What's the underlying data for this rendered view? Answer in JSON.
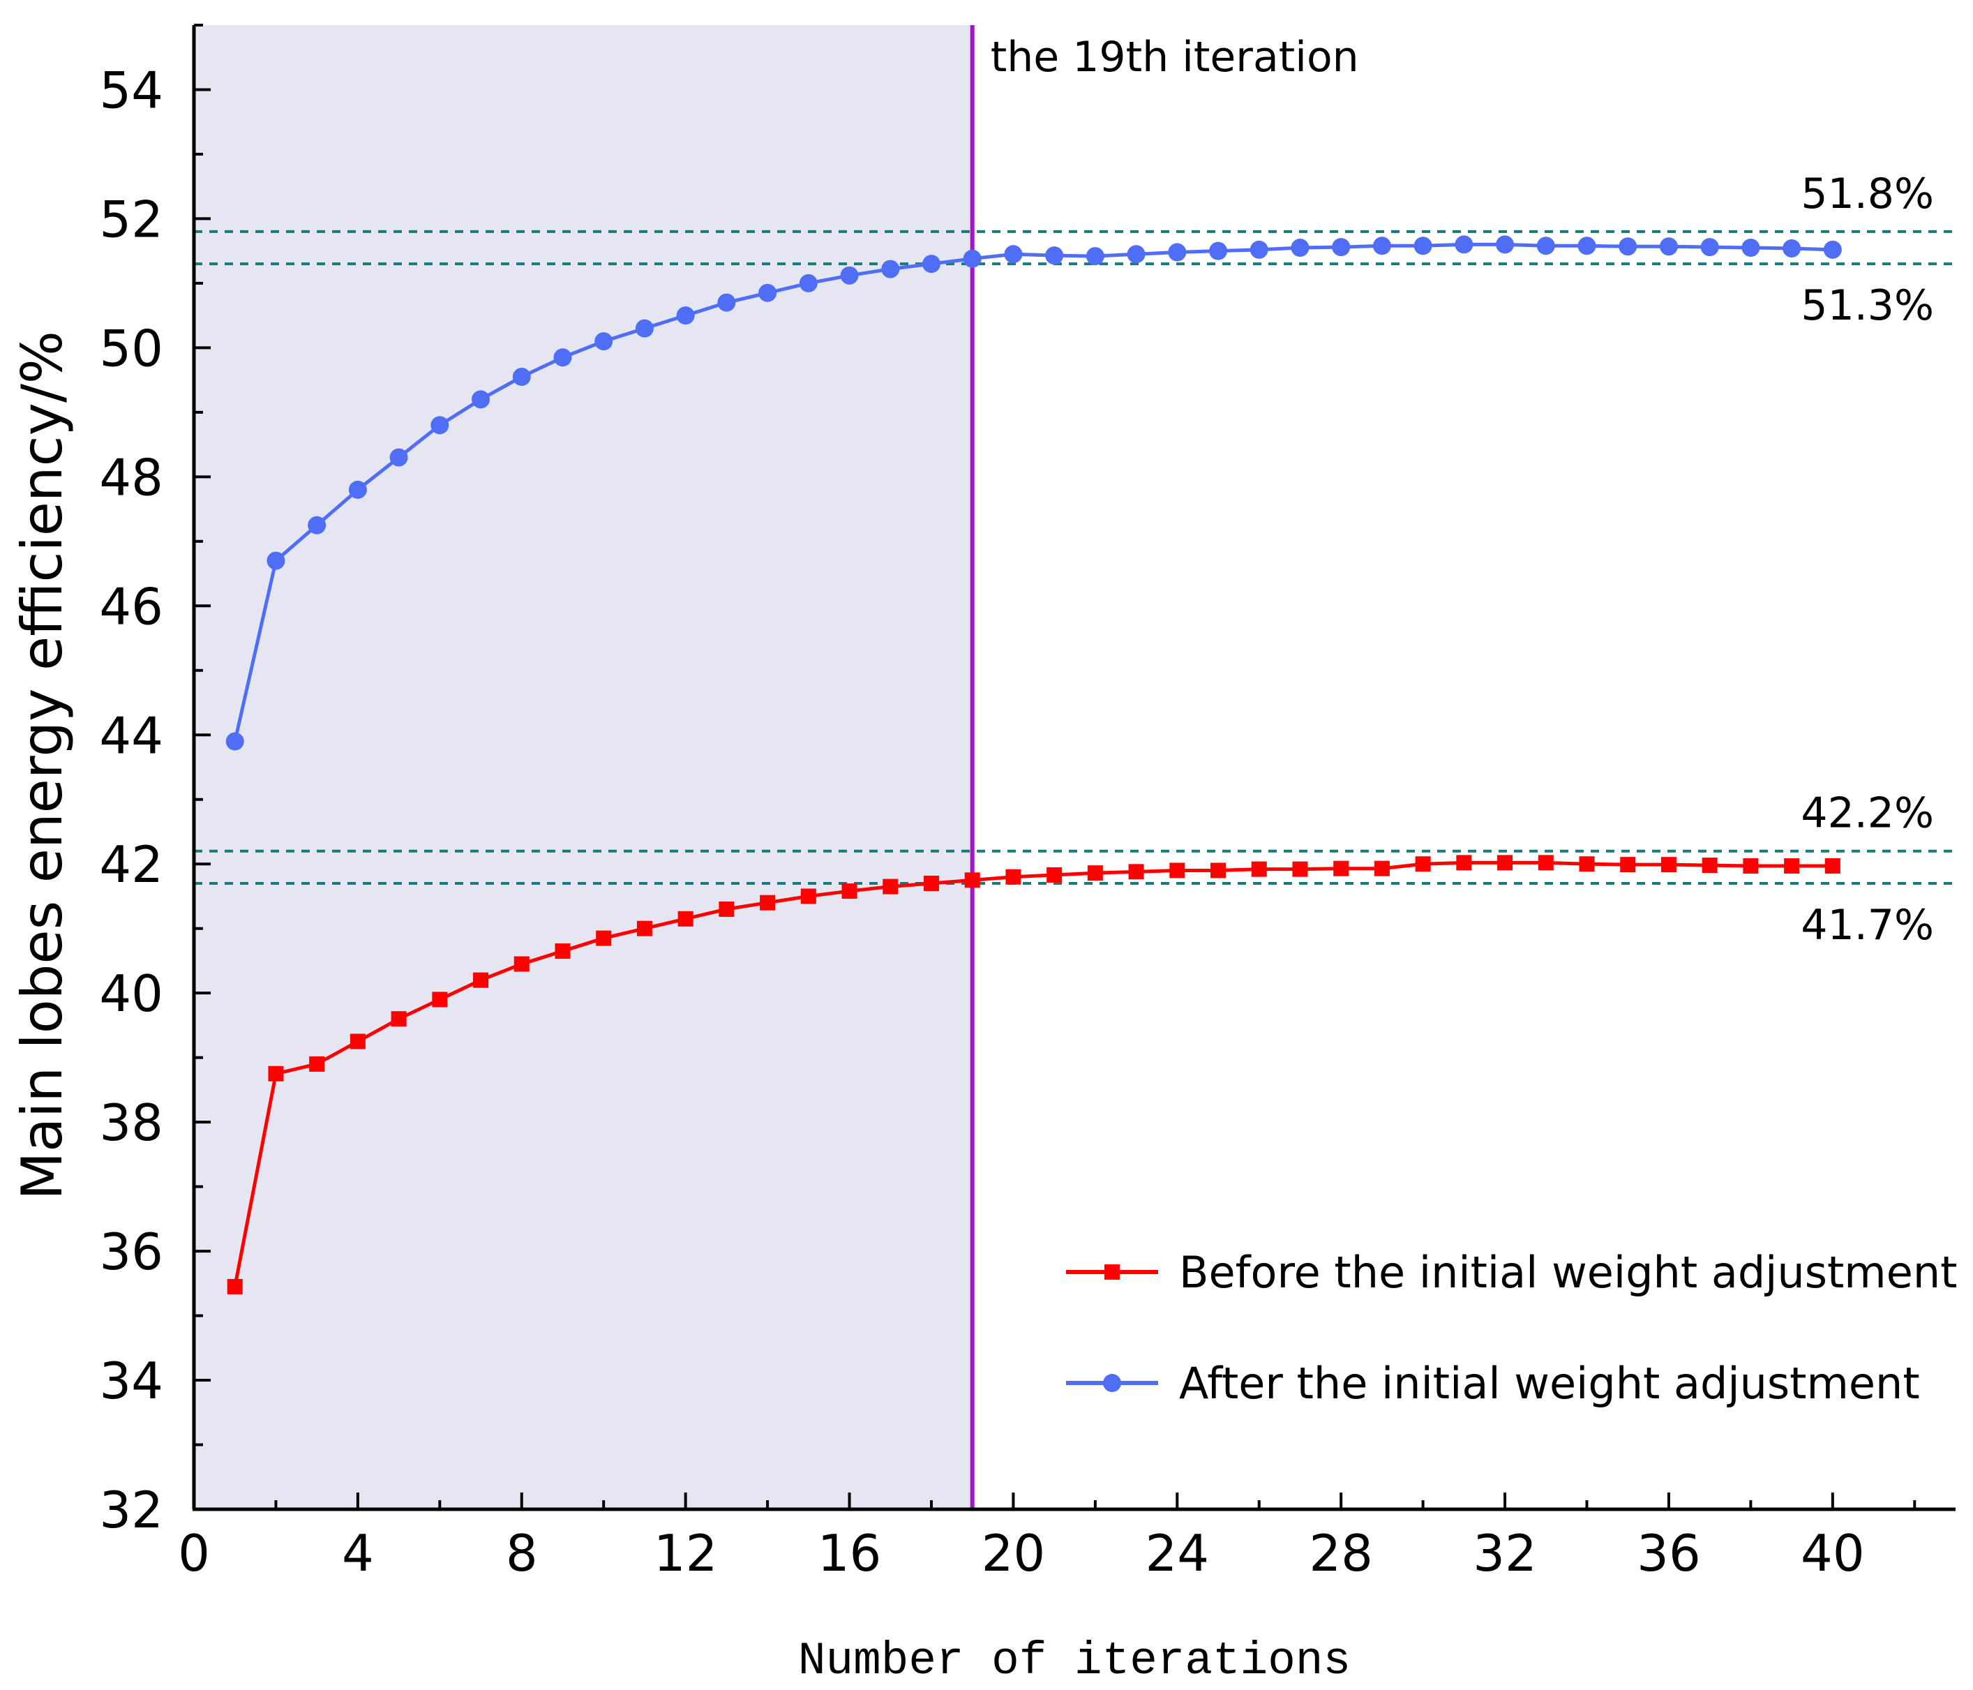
{
  "chart_data": {
    "type": "line",
    "title": "",
    "xlabel": "Number of iterations",
    "ylabel": "Main lobes energy efficiency/%",
    "xlim": [
      0,
      43
    ],
    "ylim": [
      32,
      55
    ],
    "x_ticks": [
      0,
      4,
      8,
      12,
      16,
      20,
      24,
      28,
      32,
      36,
      40
    ],
    "y_ticks": [
      32,
      34,
      36,
      38,
      40,
      42,
      44,
      46,
      48,
      50,
      52,
      54
    ],
    "x": [
      1,
      2,
      3,
      4,
      5,
      6,
      7,
      8,
      9,
      10,
      11,
      12,
      13,
      14,
      15,
      16,
      17,
      18,
      19,
      20,
      21,
      22,
      23,
      24,
      25,
      26,
      27,
      28,
      29,
      30,
      31,
      32,
      33,
      34,
      35,
      36,
      37,
      38,
      39,
      40
    ],
    "series": [
      {
        "name": "Before the initial weight adjustment",
        "color": "#ff0000",
        "marker": "square",
        "values": [
          35.45,
          38.75,
          38.9,
          39.25,
          39.6,
          39.9,
          40.2,
          40.45,
          40.65,
          40.85,
          41.0,
          41.15,
          41.3,
          41.4,
          41.5,
          41.58,
          41.65,
          41.7,
          41.75,
          41.8,
          41.83,
          41.86,
          41.88,
          41.9,
          41.9,
          41.92,
          41.92,
          41.93,
          41.93,
          42.0,
          42.02,
          42.02,
          42.02,
          42.0,
          41.99,
          41.99,
          41.98,
          41.97,
          41.97,
          41.97
        ]
      },
      {
        "name": "After the initial weight adjustment",
        "color": "#4f6df5",
        "marker": "circle",
        "values": [
          43.9,
          46.7,
          47.25,
          47.8,
          48.3,
          48.8,
          49.2,
          49.55,
          49.85,
          50.1,
          50.3,
          50.5,
          50.7,
          50.85,
          51.0,
          51.12,
          51.22,
          51.3,
          51.38,
          51.45,
          51.43,
          51.42,
          51.45,
          51.48,
          51.5,
          51.52,
          51.55,
          51.56,
          51.58,
          51.58,
          51.6,
          51.6,
          51.58,
          51.58,
          51.57,
          51.57,
          51.56,
          51.55,
          51.54,
          51.52
        ]
      }
    ],
    "shaded_region": {
      "x_from": 0,
      "x_to": 19,
      "color": "#e6e6f2"
    },
    "vertical_marker": {
      "x": 19,
      "label": "the 19th iteration",
      "color": "#a614c8"
    },
    "reference_lines": [
      {
        "y": 51.8,
        "label": "51.8%",
        "color": "#1a7a7a"
      },
      {
        "y": 51.3,
        "label": "51.3%",
        "color": "#1a7a7a"
      },
      {
        "y": 42.2,
        "label": "42.2%",
        "color": "#1a7a7a"
      },
      {
        "y": 41.7,
        "label": "41.7%",
        "color": "#1a7a7a"
      }
    ],
    "legend_position": "bottom-right",
    "grid": false
  }
}
